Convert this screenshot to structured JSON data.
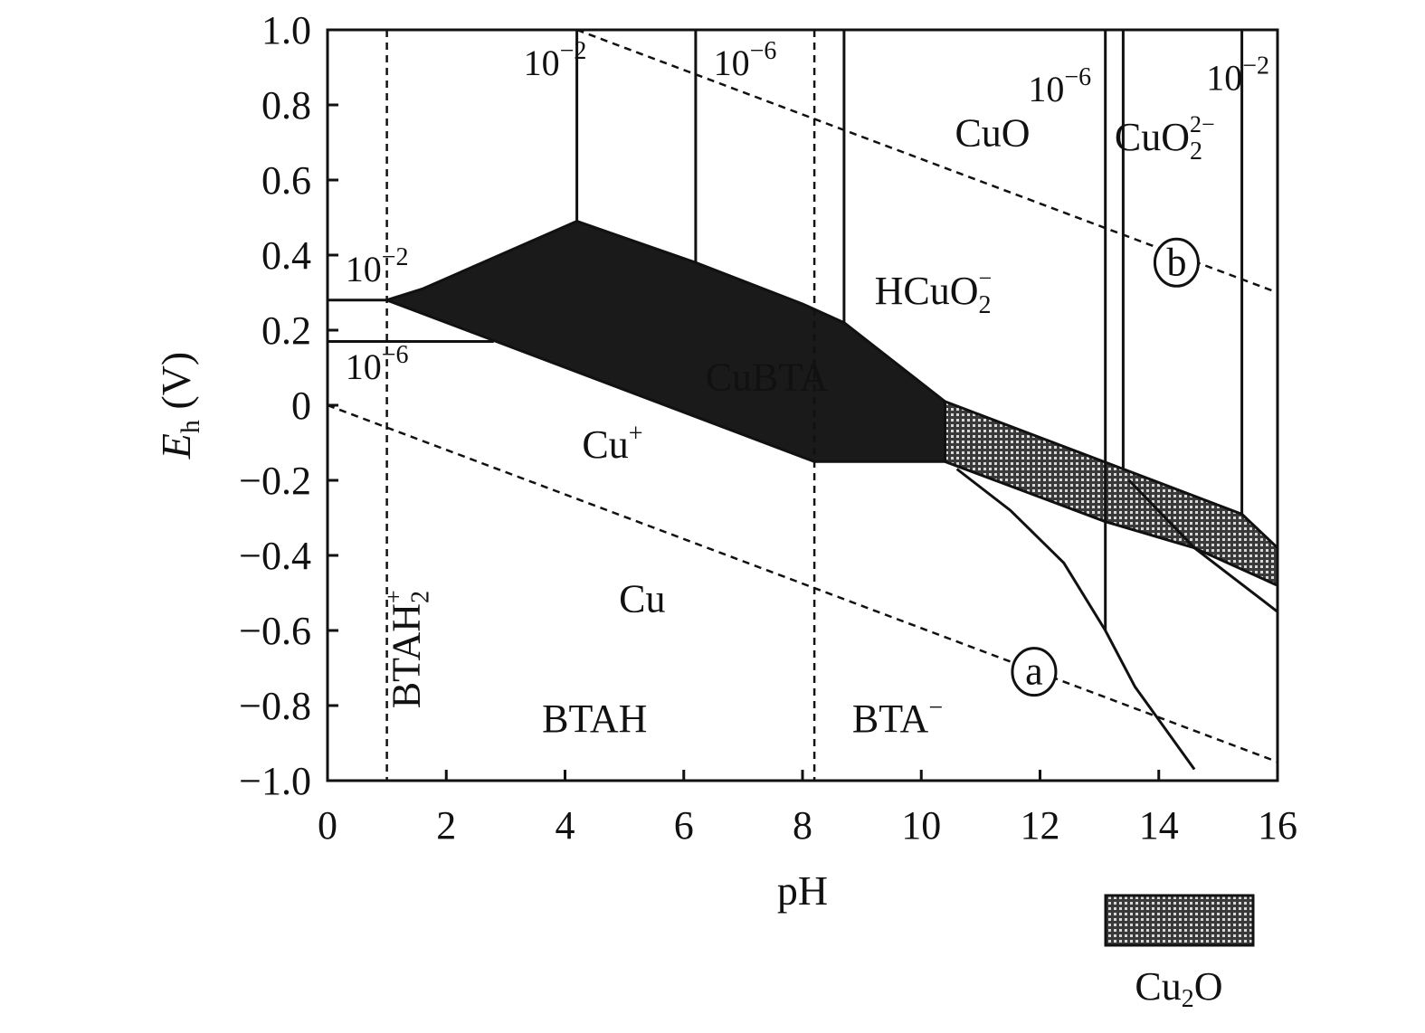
{
  "chart_data": {
    "type": "line",
    "xlabel": "pH",
    "ylabel": "Eh (V)",
    "ylabel_parts": {
      "base": "E",
      "sub": "h",
      "unit": " (V)"
    },
    "xlim": [
      0,
      16
    ],
    "ylim": [
      -1.0,
      1.0
    ],
    "xticks": [
      0,
      2,
      4,
      6,
      8,
      10,
      12,
      14,
      16
    ],
    "xtick_labels": [
      "0",
      "2",
      "4",
      "6",
      "8",
      "10",
      "12",
      "14",
      "16"
    ],
    "yticks": [
      1.0,
      0.8,
      0.6,
      0.4,
      0.2,
      0,
      -0.2,
      -0.4,
      -0.6,
      -0.8,
      -1.0
    ],
    "ytick_labels": [
      "1.0",
      "0.8",
      "0.6",
      "0.4",
      "0.2",
      "0",
      "−0.2",
      "−0.4",
      "−0.6",
      "−0.8",
      "−1.0"
    ],
    "grid": false,
    "colors": {
      "ink": "#111111",
      "fill": "#1a1a1a",
      "hatch_bg": "#3a3a3a",
      "hatch_fg": "#d8d8d8"
    },
    "series": [
      {
        "type": "dashed",
        "points": [
          [
            0,
            0.0
          ],
          [
            16,
            -0.95
          ]
        ]
      },
      {
        "type": "dashed",
        "points": [
          [
            4.2,
            1.0
          ],
          [
            16,
            0.3
          ]
        ]
      },
      {
        "type": "dashed",
        "points": [
          [
            1.0,
            1.0
          ],
          [
            1.0,
            -1.0
          ]
        ]
      },
      {
        "type": "dashed",
        "points": [
          [
            8.2,
            1.0
          ],
          [
            8.2,
            -1.0
          ]
        ]
      },
      {
        "type": "solid",
        "points": [
          [
            0,
            0.28
          ],
          [
            1.0,
            0.28
          ],
          [
            1.6,
            0.31
          ]
        ]
      },
      {
        "type": "solid",
        "points": [
          [
            0,
            0.17
          ],
          [
            2.8,
            0.17
          ]
        ]
      },
      {
        "type": "solid",
        "points": [
          [
            4.2,
            1.0
          ],
          [
            4.2,
            0.49
          ]
        ]
      },
      {
        "type": "solid",
        "points": [
          [
            6.2,
            1.0
          ],
          [
            6.2,
            0.38
          ]
        ]
      },
      {
        "type": "solid",
        "points": [
          [
            8.7,
            1.0
          ],
          [
            8.7,
            0.22
          ]
        ]
      },
      {
        "type": "solid",
        "points": [
          [
            13.4,
            1.0
          ],
          [
            13.4,
            -0.17
          ]
        ]
      },
      {
        "type": "solid",
        "points": [
          [
            15.4,
            1.0
          ],
          [
            15.4,
            -0.29
          ]
        ]
      },
      {
        "type": "solid",
        "points": [
          [
            13.1,
            1.0
          ],
          [
            13.1,
            -0.6
          ]
        ]
      },
      {
        "type": "solid",
        "points": [
          [
            10.6,
            -0.17
          ],
          [
            11.5,
            -0.28
          ],
          [
            12.4,
            -0.42
          ],
          [
            13.1,
            -0.6
          ],
          [
            13.6,
            -0.75
          ],
          [
            14.6,
            -0.97
          ]
        ]
      },
      {
        "type": "solid",
        "points": [
          [
            14.6,
            -0.38
          ],
          [
            16,
            -0.55
          ]
        ]
      },
      {
        "type": "solid",
        "points": [
          [
            13.5,
            -0.2
          ],
          [
            14.6,
            -0.38
          ]
        ]
      }
    ],
    "regions": [
      {
        "name": "CuBTA",
        "fill": "dark",
        "points": [
          [
            1.0,
            0.28
          ],
          [
            1.6,
            0.31
          ],
          [
            4.2,
            0.49
          ],
          [
            6.2,
            0.38
          ],
          [
            8.0,
            0.27
          ],
          [
            8.7,
            0.22
          ],
          [
            10.4,
            0.01
          ],
          [
            10.4,
            -0.15
          ],
          [
            8.2,
            -0.15
          ],
          [
            1.0,
            0.28
          ]
        ]
      },
      {
        "name": "Cu2O",
        "fill": "hatched",
        "points": [
          [
            10.4,
            0.01
          ],
          [
            13.4,
            -0.17
          ],
          [
            15.4,
            -0.29
          ],
          [
            16,
            -0.38
          ],
          [
            16,
            -0.48
          ],
          [
            14.6,
            -0.38
          ],
          [
            13.1,
            -0.31
          ],
          [
            10.4,
            -0.15
          ]
        ]
      }
    ],
    "annotations": [
      {
        "id": "cu",
        "text": "Cu",
        "x": 5.3,
        "y": -0.55
      },
      {
        "id": "cuplus",
        "text": "Cu",
        "sup": "+",
        "x": 4.8,
        "y": -0.14
      },
      {
        "id": "cubta",
        "text": "CuBTA",
        "x": 7.4,
        "y": 0.04,
        "color": "#ffffff"
      },
      {
        "id": "cuo",
        "text": "CuO",
        "x": 11.2,
        "y": 0.69
      },
      {
        "id": "cuo2",
        "text": "CuO",
        "sub": "2",
        "sup": "2−",
        "x": 14.1,
        "y": 0.68
      },
      {
        "id": "hcuo2",
        "text": "HCuO",
        "sub": "2",
        "sup": "−",
        "x": 10.2,
        "y": 0.27
      },
      {
        "id": "btah",
        "text": "BTAH",
        "x": 4.5,
        "y": -0.87
      },
      {
        "id": "btaminus",
        "text": "BTA",
        "sup": "−",
        "x": 9.6,
        "y": -0.87
      },
      {
        "id": "btah2",
        "text": "BTAH",
        "sub": "2",
        "sup": "+",
        "x": 1.55,
        "y": -0.65,
        "rotate": -90
      }
    ],
    "concentration_labels": [
      {
        "text": "10",
        "sup": "−2",
        "x": 3.3,
        "y": 0.88
      },
      {
        "text": "10",
        "sup": "−6",
        "x": 6.5,
        "y": 0.88
      },
      {
        "text": "10",
        "sup": "−6",
        "x": 11.8,
        "y": 0.81
      },
      {
        "text": "10",
        "sup": "−2",
        "x": 14.8,
        "y": 0.84
      },
      {
        "text": "10",
        "sup": "−2",
        "x": 0.3,
        "y": 0.33
      },
      {
        "text": "10",
        "sup": "−6",
        "x": 0.3,
        "y": 0.07
      }
    ],
    "line_markers": [
      {
        "text": "a",
        "x": 11.9,
        "y": -0.71
      },
      {
        "text": "b",
        "x": 14.3,
        "y": 0.38
      }
    ],
    "legend": {
      "label": "Cu",
      "label_sub": "2",
      "label_tail": "O",
      "placement": "bottom-right, outside plot"
    }
  }
}
